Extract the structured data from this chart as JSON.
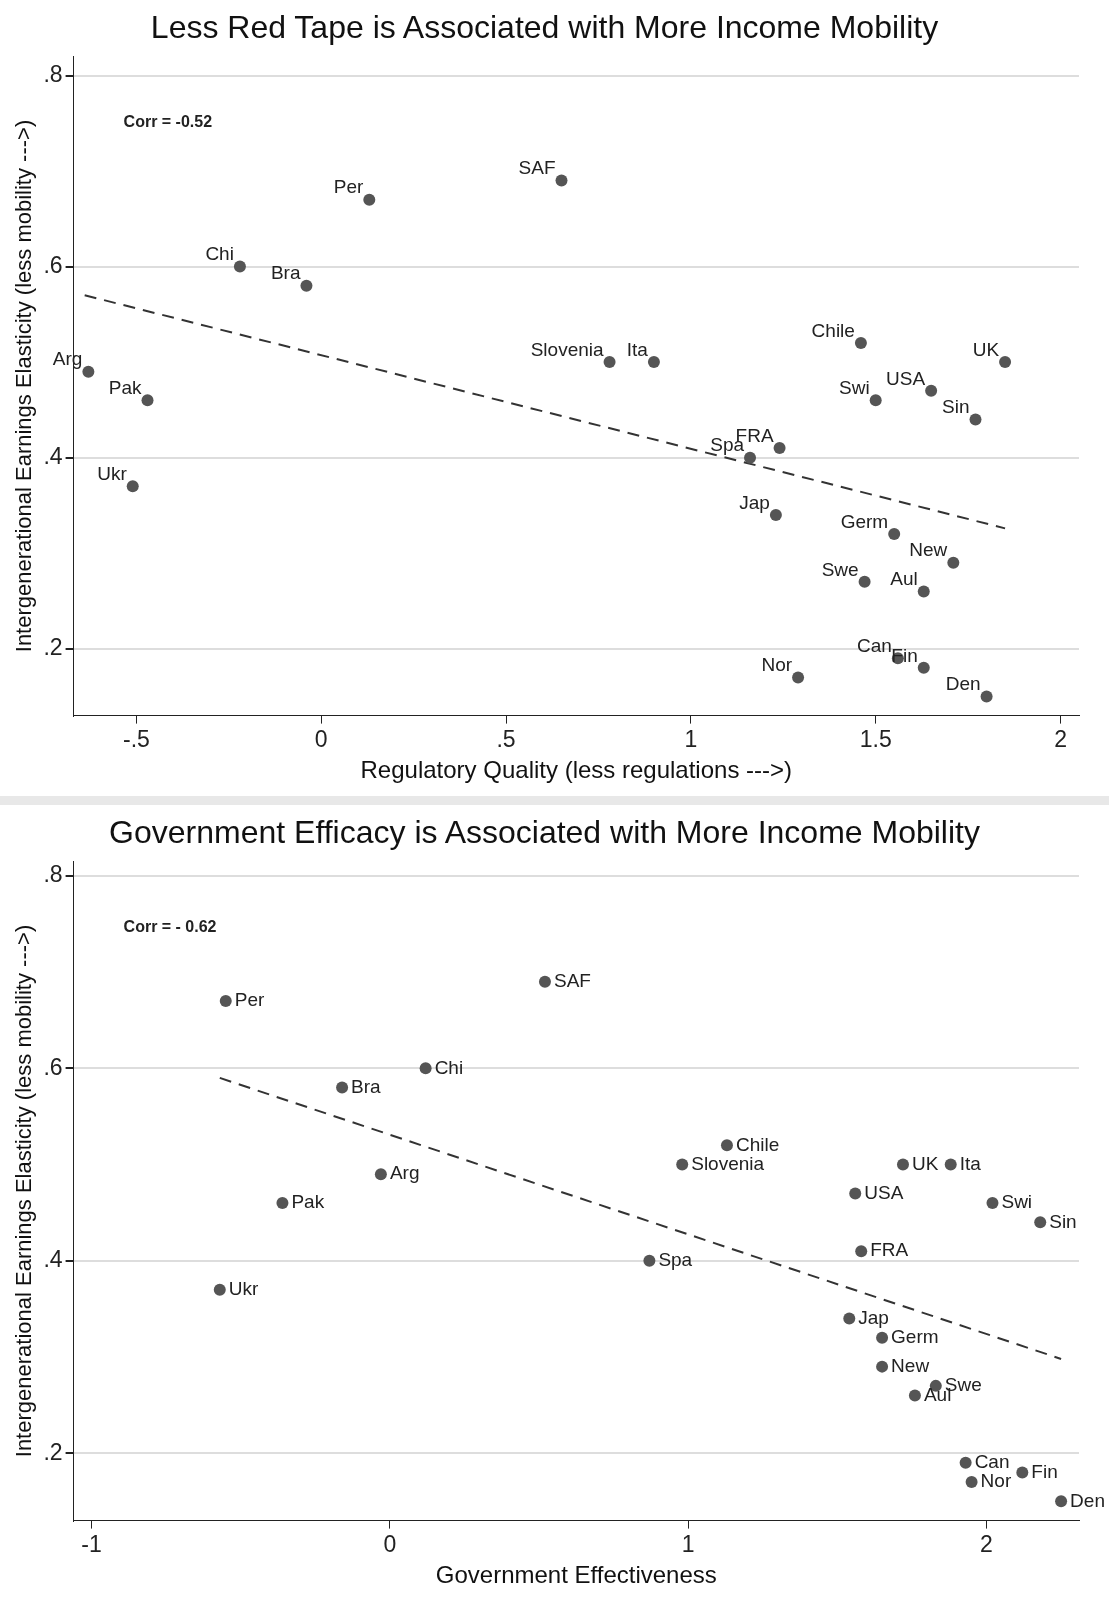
{
  "chart_data": [
    {
      "type": "scatter",
      "title": "Less Red Tape is Associated with More Income Mobility",
      "xlabel": "Regulatory Quality (less regulations --->)",
      "ylabel": "Intergenerational Earnings Elasticity (less mobility --->)",
      "xlim": [
        -0.67,
        2.05
      ],
      "ylim": [
        0.13,
        0.82
      ],
      "xticks": [
        {
          "value": -0.5,
          "label": "-.5"
        },
        0,
        {
          "value": 0.5,
          "label": ".5"
        },
        1,
        1.5,
        2
      ],
      "yticks": [
        {
          "value": 0.2,
          "label": ".2"
        },
        {
          "value": 0.4,
          "label": ".4"
        },
        {
          "value": 0.6,
          "label": ".6"
        },
        {
          "value": 0.8,
          "label": ".8"
        }
      ],
      "grid": "y",
      "legend": false,
      "series": [
        {
          "color": "#555555",
          "marker": "circle",
          "x": [
            -0.63,
            -0.47,
            -0.51,
            -0.22,
            -0.04,
            0.13,
            0.65,
            0.78,
            0.9,
            1.16,
            1.24,
            1.23,
            1.46,
            1.5,
            1.65,
            1.77,
            1.85,
            1.55,
            1.71,
            1.47,
            1.63,
            1.56,
            1.63,
            1.29,
            1.8
          ],
          "values": [
            0.49,
            0.46,
            0.37,
            0.6,
            0.58,
            0.67,
            0.69,
            0.5,
            0.5,
            0.4,
            0.41,
            0.34,
            0.52,
            0.46,
            0.47,
            0.44,
            0.5,
            0.32,
            0.29,
            0.27,
            0.26,
            0.19,
            0.18,
            0.17,
            0.15
          ]
        },
        {
          "type": "line",
          "color": "#333333",
          "marker": "none",
          "line_style": "dashed",
          "x": [
            -0.64,
            1.85
          ],
          "values": [
            0.57,
            0.326
          ]
        }
      ],
      "annotations": [
        "Corr = -0.52",
        {
          "text": "Arg",
          "x": -0.63,
          "y": 0.49
        },
        {
          "text": "Pak",
          "x": -0.47,
          "y": 0.46
        },
        {
          "text": "Ukr",
          "x": -0.51,
          "y": 0.37
        },
        {
          "text": "Chi",
          "x": -0.22,
          "y": 0.6
        },
        {
          "text": "Bra",
          "x": -0.04,
          "y": 0.58
        },
        {
          "text": "Per",
          "x": 0.13,
          "y": 0.67
        },
        {
          "text": "SAF",
          "x": 0.65,
          "y": 0.69
        },
        {
          "text": "Slovenia",
          "x": 0.78,
          "y": 0.5
        },
        {
          "text": "Ita",
          "x": 0.9,
          "y": 0.5
        },
        {
          "text": "Spa",
          "x": 1.16,
          "y": 0.4
        },
        {
          "text": "FRA",
          "x": 1.24,
          "y": 0.41
        },
        {
          "text": "Jap",
          "x": 1.23,
          "y": 0.34
        },
        {
          "text": "Chile",
          "x": 1.46,
          "y": 0.52
        },
        {
          "text": "Swi",
          "x": 1.5,
          "y": 0.46
        },
        {
          "text": "USA",
          "x": 1.65,
          "y": 0.47
        },
        {
          "text": "Sin",
          "x": 1.77,
          "y": 0.44
        },
        {
          "text": "UK",
          "x": 1.85,
          "y": 0.5
        },
        {
          "text": "Germ",
          "x": 1.55,
          "y": 0.32
        },
        {
          "text": "New",
          "x": 1.71,
          "y": 0.29
        },
        {
          "text": "Swe",
          "x": 1.47,
          "y": 0.27
        },
        {
          "text": "Aul",
          "x": 1.63,
          "y": 0.26
        },
        {
          "text": "Can",
          "x": 1.56,
          "y": 0.19
        },
        {
          "text": "Fin",
          "x": 1.63,
          "y": 0.18
        },
        {
          "text": "Nor",
          "x": 1.29,
          "y": 0.17
        },
        {
          "text": "Den",
          "x": 1.8,
          "y": 0.15
        }
      ]
    },
    {
      "type": "scatter",
      "title": "Government Efficacy is Associated with More Income Mobility",
      "xlabel": "Government Effectiveness",
      "ylabel": "Intergenerational Earnings Elasticity (less mobility --->)",
      "xlim": [
        -1.06,
        2.31
      ],
      "ylim": [
        0.13,
        0.815
      ],
      "xticks": [
        -1,
        0,
        1,
        2
      ],
      "yticks": [
        {
          "value": 0.2,
          "label": ".2"
        },
        {
          "value": 0.4,
          "label": ".4"
        },
        {
          "value": 0.6,
          "label": ".6"
        },
        {
          "value": 0.8,
          "label": ".8"
        }
      ],
      "grid": "y",
      "legend": false,
      "series": [
        {
          "color": "#555555",
          "marker": "circle",
          "x": [
            -0.55,
            0.52,
            0.12,
            -0.16,
            -0.03,
            -0.36,
            -0.57,
            0.87,
            1.13,
            0.98,
            1.72,
            1.88,
            1.56,
            2.02,
            2.18,
            1.58,
            1.54,
            1.65,
            1.65,
            1.83,
            1.76,
            1.93,
            2.12,
            1.95,
            2.25
          ],
          "values": [
            0.67,
            0.69,
            0.6,
            0.58,
            0.49,
            0.46,
            0.37,
            0.4,
            0.52,
            0.5,
            0.5,
            0.5,
            0.47,
            0.46,
            0.44,
            0.41,
            0.34,
            0.32,
            0.29,
            0.27,
            0.26,
            0.19,
            0.18,
            0.17,
            0.15
          ]
        },
        {
          "type": "line",
          "color": "#333333",
          "marker": "none",
          "line_style": "dashed",
          "x": [
            -0.57,
            2.25
          ],
          "values": [
            0.59,
            0.298
          ]
        }
      ],
      "annotations": [
        "Corr = - 0.62",
        {
          "text": "Per",
          "x": -0.55,
          "y": 0.67
        },
        {
          "text": "SAF",
          "x": 0.52,
          "y": 0.69
        },
        {
          "text": "Chi",
          "x": 0.12,
          "y": 0.6
        },
        {
          "text": "Bra",
          "x": -0.16,
          "y": 0.58
        },
        {
          "text": "Arg",
          "x": -0.03,
          "y": 0.49
        },
        {
          "text": "Pak",
          "x": -0.36,
          "y": 0.46
        },
        {
          "text": "Ukr",
          "x": -0.57,
          "y": 0.37
        },
        {
          "text": "Spa",
          "x": 0.87,
          "y": 0.4
        },
        {
          "text": "Chile",
          "x": 1.13,
          "y": 0.52
        },
        {
          "text": "Slovenia",
          "x": 0.98,
          "y": 0.5
        },
        {
          "text": "UK",
          "x": 1.72,
          "y": 0.5
        },
        {
          "text": "Ita",
          "x": 1.88,
          "y": 0.5
        },
        {
          "text": "USA",
          "x": 1.56,
          "y": 0.47
        },
        {
          "text": "Swi",
          "x": 2.02,
          "y": 0.46
        },
        {
          "text": "Sin",
          "x": 2.18,
          "y": 0.44
        },
        {
          "text": "FRA",
          "x": 1.58,
          "y": 0.41
        },
        {
          "text": "Jap",
          "x": 1.54,
          "y": 0.34
        },
        {
          "text": "Germ",
          "x": 1.65,
          "y": 0.32
        },
        {
          "text": "New",
          "x": 1.65,
          "y": 0.29
        },
        {
          "text": "Swe",
          "x": 1.83,
          "y": 0.27
        },
        {
          "text": "Aul",
          "x": 1.76,
          "y": 0.26
        },
        {
          "text": "Can",
          "x": 1.93,
          "y": 0.19
        },
        {
          "text": "Fin",
          "x": 2.12,
          "y": 0.18
        },
        {
          "text": "Nor",
          "x": 1.95,
          "y": 0.17
        },
        {
          "text": "Den",
          "x": 2.25,
          "y": 0.15
        }
      ]
    }
  ]
}
